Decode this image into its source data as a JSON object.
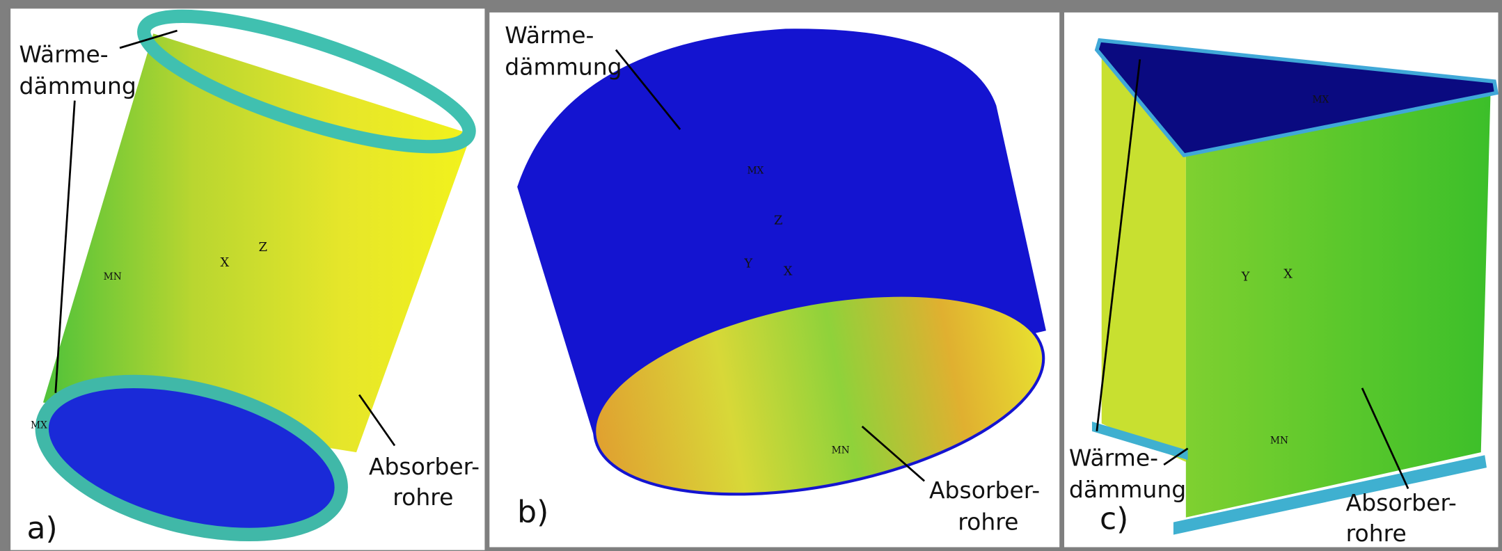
{
  "panels": [
    {
      "tag": "a)",
      "insulation": [
        "Wärme-",
        "dämmung"
      ],
      "absorber": [
        "Absorber-",
        "rohre"
      ],
      "markers": [
        "MN",
        "MX"
      ],
      "axes": [
        "X",
        "Z"
      ]
    },
    {
      "tag": "b)",
      "insulation": [
        "Wärme-",
        "dämmung"
      ],
      "absorber": [
        "Absorber-",
        "rohre"
      ],
      "markers": [
        "MX",
        "MN"
      ],
      "axes": [
        "Z",
        "Y",
        "X"
      ]
    },
    {
      "tag": "c)",
      "insulation": [
        "Wärme-",
        "dämmung"
      ],
      "absorber": [
        "Absorber-",
        "rohre"
      ],
      "markers": [
        "MX",
        "MN"
      ],
      "axes": [
        "Y",
        "X"
      ]
    }
  ]
}
